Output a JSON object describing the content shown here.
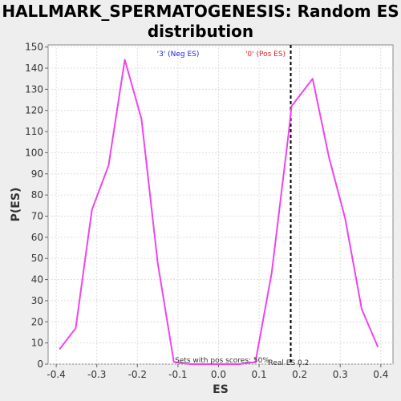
{
  "chart_data": {
    "type": "line",
    "title_line1": "HALLMARK_SPERMATOGENESIS: Random ES",
    "title_line2": "distribution",
    "xlabel": "ES",
    "ylabel": "P(ES)",
    "xlim": [
      -0.42,
      0.43
    ],
    "ylim": [
      0,
      151
    ],
    "x_ticks": [
      -0.4,
      -0.3,
      -0.2,
      -0.1,
      0.0,
      0.1,
      0.2,
      0.3,
      0.4
    ],
    "x_tick_labels": [
      "-0.4",
      "-0.3",
      "-0.2",
      "-0.1",
      "0.0",
      "0.1",
      "0.2",
      "0.3",
      "0.4"
    ],
    "y_ticks": [
      0,
      10,
      20,
      30,
      40,
      50,
      60,
      70,
      80,
      90,
      100,
      110,
      120,
      130,
      140,
      150
    ],
    "y_tick_labels": [
      "0",
      "10",
      "20",
      "30",
      "40",
      "50",
      "60",
      "70",
      "80",
      "90",
      "100",
      "110",
      "120",
      "130",
      "140",
      "150"
    ],
    "grid": true,
    "series": [
      {
        "color": "#ee44ee",
        "x": [
          -0.392,
          -0.352,
          -0.312,
          -0.271,
          -0.231,
          -0.19,
          -0.15,
          -0.11,
          -0.07,
          -0.03,
          0.011,
          0.051,
          0.091,
          0.131,
          0.172,
          0.18,
          0.232,
          0.272,
          0.312,
          0.353,
          0.393
        ],
        "y": [
          7,
          17,
          73,
          94,
          144,
          116,
          48,
          1,
          0,
          0,
          0,
          0,
          1,
          43,
          108,
          122,
          135,
          98,
          69,
          26,
          8
        ]
      }
    ],
    "real_es": 0.178,
    "annotations": {
      "neg_label": "'3' (Neg ES)",
      "pos_label": "'0' (Pos ES)",
      "pos_scores": "Sets with pos scores: 50%",
      "real_es": "Real ES 0.2"
    },
    "colors": {
      "neg_label": "#2222dd",
      "pos_label": "#dd2222",
      "line": "#ee44ee",
      "real_es_line": "#000000",
      "grid": "#dddddd"
    }
  }
}
